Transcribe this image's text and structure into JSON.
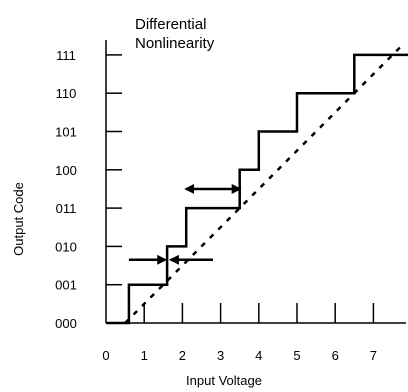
{
  "chart_data": {
    "type": "line",
    "title": "",
    "xlabel": "Input Voltage",
    "ylabel": "Output Code",
    "x_ticks": [
      0,
      1,
      2,
      3,
      4,
      5,
      6,
      7
    ],
    "y_ticks": [
      "000",
      "001",
      "010",
      "011",
      "100",
      "101",
      "110",
      "111"
    ],
    "xlim": [
      0,
      8
    ],
    "ylim": [
      0,
      7
    ],
    "grid": false,
    "series": [
      {
        "style": "solid-step",
        "x": [
          0,
          0.6,
          0.6,
          1.6,
          1.6,
          2.1,
          2.1,
          3.5,
          3.5,
          4.0,
          4.0,
          5.0,
          5.0,
          6.5,
          6.5,
          8.0
        ],
        "y": [
          0,
          0,
          1,
          1,
          2,
          2,
          3,
          3,
          4,
          4,
          5,
          5,
          6,
          6,
          7,
          7
        ]
      },
      {
        "style": "dashed-ideal",
        "x": [
          0.5,
          7.8
        ],
        "y": [
          0,
          7.3
        ]
      }
    ],
    "annotations": [
      {
        "text": "Differential\nNonlinearity",
        "arrows": [
          {
            "kind": "inward",
            "y": 1.65,
            "x_from_left": 0.6,
            "x_to_left": 1.55,
            "x_from_right": 2.8,
            "x_to_right": 1.7
          },
          {
            "kind": "double",
            "y": 3.5,
            "x_from": 2.1,
            "x_to": 3.5
          }
        ]
      }
    ]
  }
}
